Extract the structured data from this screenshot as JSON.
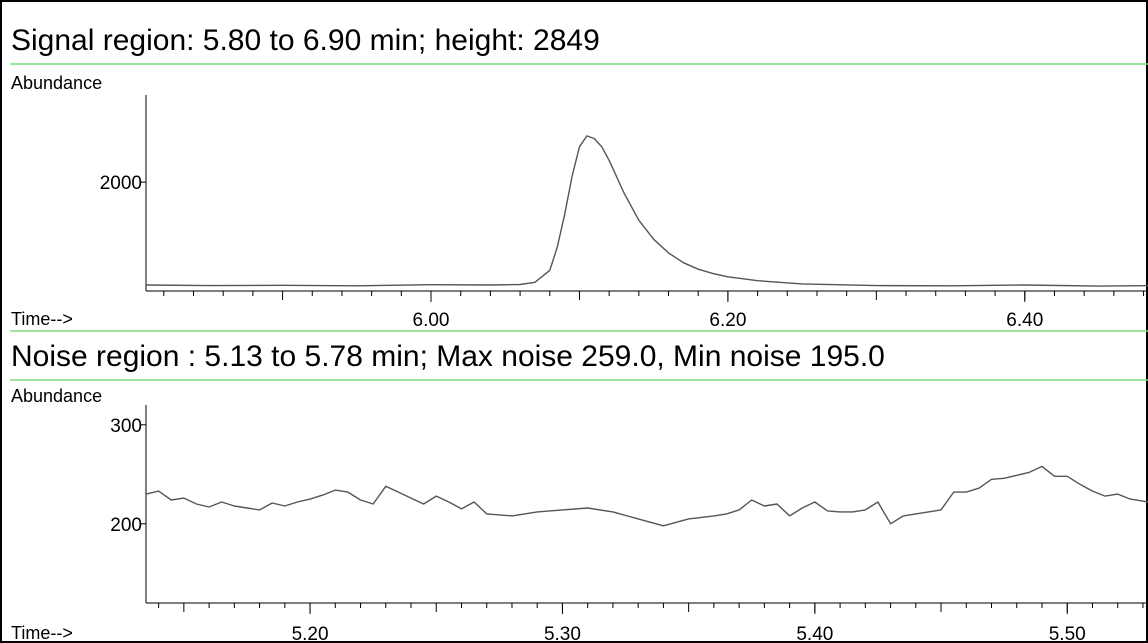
{
  "charts": [
    {
      "title": "Signal region:  5.80 to  6.90 min; height: 2849",
      "ylabel": "Abundance",
      "xlabel": "Time-->"
    },
    {
      "title": "Noise region :  5.13 to  5.78 min; Max noise 259.0, Min noise 195.0",
      "ylabel": "Abundance",
      "xlabel": "Time-->"
    }
  ],
  "colors": {
    "trace": "#555555",
    "separator": "#7fdc7f",
    "axis": "#000000"
  },
  "chart_data": [
    {
      "type": "line",
      "title": "Signal region:  5.80 to  6.90 min; height: 2849",
      "xlabel": "Time-->",
      "ylabel": "Abundance",
      "xlim": [
        5.808,
        6.483
      ],
      "ylim": [
        0,
        3600
      ],
      "x_ticks": [
        6.0,
        6.2,
        6.4
      ],
      "x_ticklabels": [
        "6.00",
        "6.20",
        "6.40"
      ],
      "y_ticks": [
        2000
      ],
      "y_ticklabels": [
        "2000"
      ],
      "grid": false,
      "series": [
        {
          "x": [
            5.808,
            5.85,
            5.9,
            5.95,
            6.0,
            6.04,
            6.06,
            6.07,
            6.08,
            6.085,
            6.09,
            6.095,
            6.1,
            6.105,
            6.11,
            6.115,
            6.12,
            6.125,
            6.13,
            6.135,
            6.14,
            6.15,
            6.16,
            6.17,
            6.18,
            6.19,
            6.2,
            6.22,
            6.25,
            6.3,
            6.35,
            6.4,
            6.45,
            6.483
          ],
          "y": [
            110,
            100,
            105,
            95,
            115,
            110,
            120,
            160,
            380,
            800,
            1400,
            2100,
            2650,
            2849,
            2800,
            2650,
            2400,
            2100,
            1800,
            1550,
            1300,
            950,
            700,
            520,
            400,
            320,
            260,
            190,
            130,
            100,
            95,
            110,
            90,
            100
          ]
        }
      ]
    },
    {
      "type": "line",
      "title": "Noise region :  5.13 to  5.78 min; Max noise 259.0, Min noise 195.0",
      "xlabel": "Time-->",
      "ylabel": "Abundance",
      "xlim": [
        5.135,
        5.532
      ],
      "ylim": [
        120,
        320
      ],
      "x_ticks": [
        5.2,
        5.3,
        5.4,
        5.5
      ],
      "x_ticklabels": [
        "5.20",
        "5.30",
        "5.40",
        "5.50"
      ],
      "y_ticks": [
        200,
        300
      ],
      "y_ticklabels": [
        "200",
        "300"
      ],
      "grid": false,
      "series": [
        {
          "x": [
            5.135,
            5.14,
            5.145,
            5.15,
            5.155,
            5.16,
            5.165,
            5.17,
            5.175,
            5.18,
            5.185,
            5.19,
            5.195,
            5.2,
            5.205,
            5.21,
            5.215,
            5.22,
            5.225,
            5.23,
            5.235,
            5.24,
            5.245,
            5.25,
            5.255,
            5.26,
            5.265,
            5.27,
            5.28,
            5.29,
            5.3,
            5.31,
            5.32,
            5.33,
            5.34,
            5.35,
            5.36,
            5.365,
            5.37,
            5.375,
            5.38,
            5.385,
            5.39,
            5.395,
            5.4,
            5.405,
            5.41,
            5.415,
            5.42,
            5.425,
            5.43,
            5.435,
            5.44,
            5.445,
            5.45,
            5.455,
            5.46,
            5.465,
            5.47,
            5.475,
            5.48,
            5.485,
            5.49,
            5.495,
            5.5,
            5.505,
            5.51,
            5.515,
            5.52,
            5.525,
            5.532
          ],
          "y": [
            230,
            233,
            224,
            226,
            220,
            217,
            222,
            218,
            216,
            214,
            221,
            218,
            222,
            225,
            229,
            234,
            232,
            224,
            220,
            238,
            232,
            226,
            220,
            228,
            222,
            215,
            222,
            210,
            208,
            212,
            214,
            216,
            212,
            205,
            198,
            205,
            208,
            210,
            214,
            224,
            218,
            220,
            208,
            216,
            222,
            213,
            212,
            212,
            214,
            222,
            200,
            208,
            210,
            212,
            214,
            232,
            232,
            236,
            245,
            246,
            249,
            252,
            258,
            248,
            248,
            240,
            233,
            228,
            230,
            225,
            222
          ]
        }
      ]
    }
  ]
}
